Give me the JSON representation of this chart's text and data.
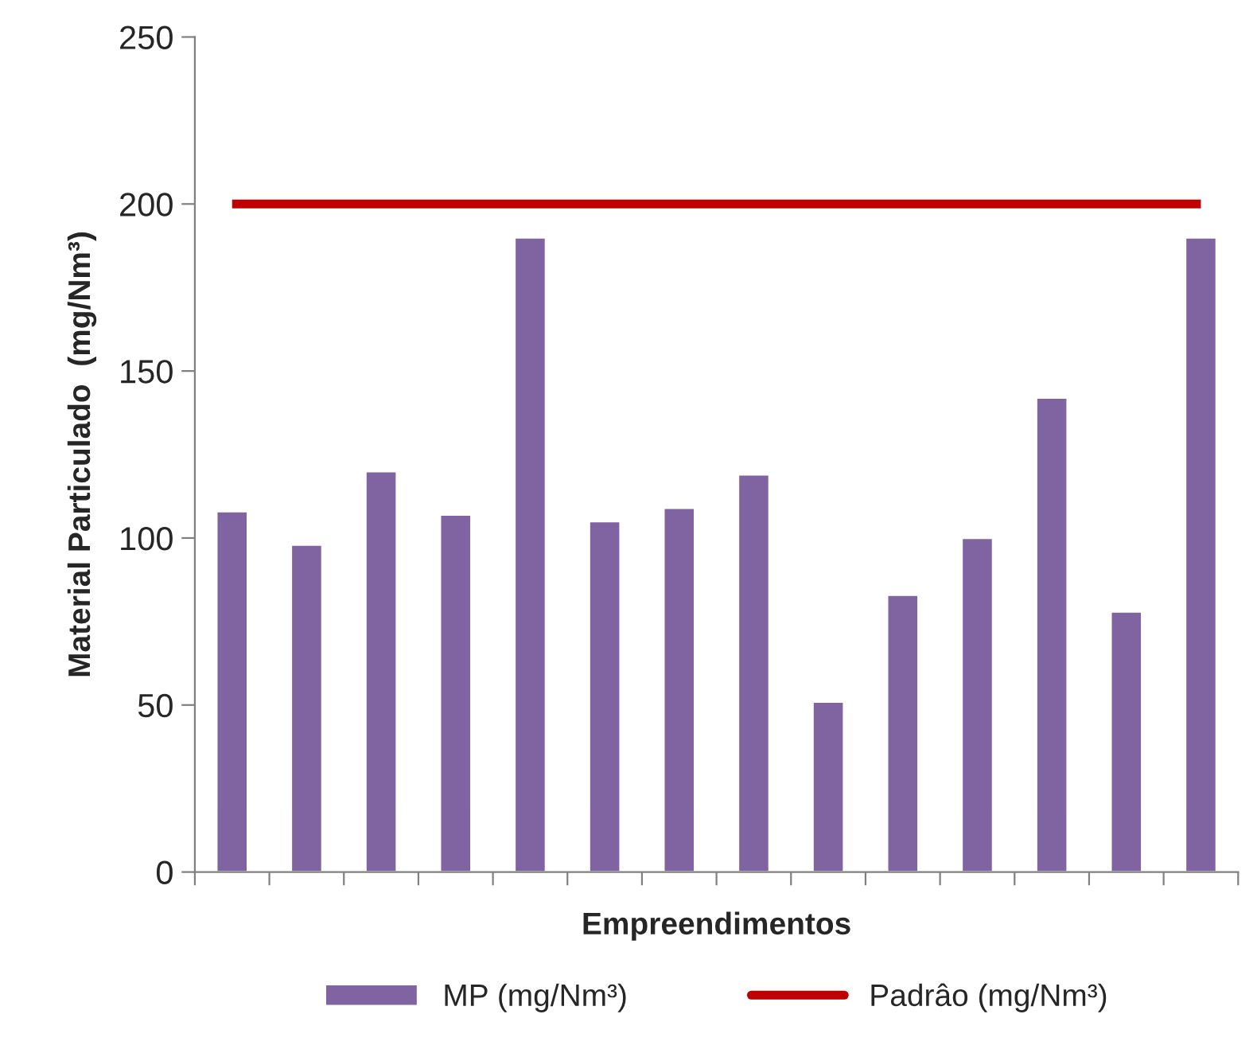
{
  "chart_data": {
    "type": "bar",
    "ylabel": "Material Particulado  (mg/Nm³)",
    "xlabel": "Empreendimentos",
    "categories": [
      null,
      null,
      null,
      null,
      null,
      null,
      null,
      null,
      null,
      null,
      null,
      null,
      null,
      null
    ],
    "series": [
      {
        "name": "MP (mg/Nm³)",
        "color": "#8064a2",
        "values": [
          108,
          98,
          120,
          107,
          190,
          105,
          109,
          119,
          51,
          83,
          100,
          142,
          78,
          190
        ]
      },
      {
        "name": "Padrâo (mg/Nm³)",
        "type": "line",
        "color": "#c00000",
        "values": [
          200,
          200,
          200,
          200,
          200,
          200,
          200,
          200,
          200,
          200,
          200,
          200,
          200,
          200
        ]
      }
    ],
    "ylim": [
      0,
      250
    ],
    "yticks": [
      0,
      50,
      100,
      150,
      200,
      250
    ],
    "grid": false,
    "legend": "bottom",
    "tick_labels": "y"
  }
}
